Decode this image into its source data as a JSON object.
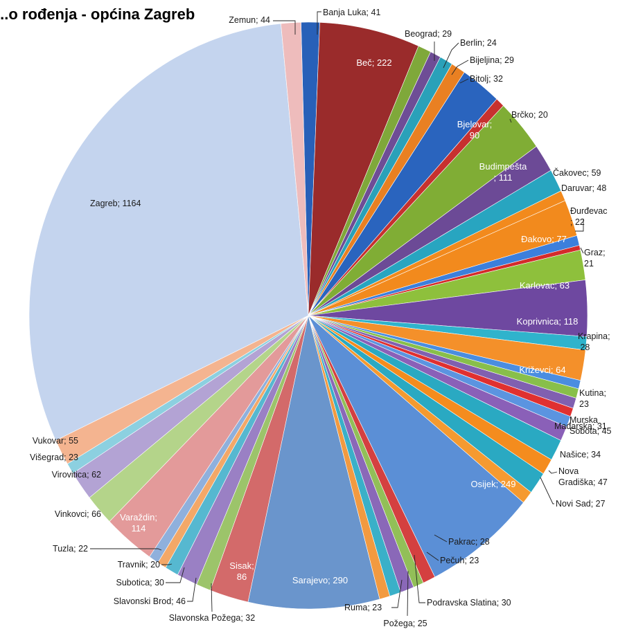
{
  "chart_data": {
    "type": "pie",
    "title": "...o rođenja - općina Zagreb",
    "legend": "none",
    "slices": [
      {
        "label": "Banja Luka; 41",
        "name": "Banja Luka",
        "value": 41,
        "color": "#2860b8"
      },
      {
        "label": "Beč; 222",
        "name": "Beč",
        "value": 222,
        "color": "#9a2b2b"
      },
      {
        "label": "Beograd; 29",
        "name": "Beograd",
        "value": 29,
        "color": "#7fa83a"
      },
      {
        "label": "Berlin; 24",
        "name": "Berlin",
        "value": 24,
        "color": "#6e4d96"
      },
      {
        "label": "Bijeljina; 29",
        "name": "Bijeljina",
        "value": 29,
        "color": "#2aa1b9"
      },
      {
        "label": "Bitolj; 32",
        "name": "Bitolj",
        "value": 32,
        "color": "#e98022"
      },
      {
        "label": "Bjelovar; 90",
        "name": "Bjelovar",
        "value": 90,
        "color": "#2a64be"
      },
      {
        "label": "Brčko; 20",
        "name": "Brčko",
        "value": 20,
        "color": "#c7312f"
      },
      {
        "label": "Budimpešta; 111",
        "name": "Budimpešta",
        "value": 111,
        "color": "#80ad35"
      },
      {
        "label": "Čakovec; 59",
        "name": "Čakovec",
        "value": 59,
        "color": "#6c4a96"
      },
      {
        "label": "Daruvar; 48",
        "name": "Daruvar",
        "value": 48,
        "color": "#28a5c0"
      },
      {
        "label": "Đurđevac; 22",
        "name": "Đurđevac",
        "value": 22,
        "color": "#f28a1d"
      },
      {
        "label": "Đakovo; 77",
        "name": "Đakovo",
        "value": 77,
        "color": "#f28a1d"
      },
      {
        "label": "Graz; 21",
        "name": "Graz",
        "value": 21,
        "color": "#3c7fdc"
      },
      {
        "label": "",
        "name": "",
        "value": 10,
        "color": "#d42b2b"
      },
      {
        "label": "Karlovac; 63",
        "name": "Karlovac",
        "value": 63,
        "color": "#8ec03c"
      },
      {
        "label": "Koprivnica; 118",
        "name": "Koprivnica",
        "value": 118,
        "color": "#6e48a0"
      },
      {
        "label": "Krapina; 28",
        "name": "Krapina",
        "value": 28,
        "color": "#2fb3cc"
      },
      {
        "label": "Križevci; 64",
        "name": "Križevci",
        "value": 64,
        "color": "#f4902a"
      },
      {
        "label": "",
        "name": "",
        "value": 18,
        "color": "#4a8de0"
      },
      {
        "label": "",
        "name": "",
        "value": 20,
        "color": "#88bf4a"
      },
      {
        "label": "",
        "name": "",
        "value": 22,
        "color": "#8060b0"
      },
      {
        "label": "",
        "name": "",
        "value": 18,
        "color": "#e03030"
      },
      {
        "label": "Kutina; 23",
        "name": "Kutina",
        "value": 23,
        "color": "#5b94e0"
      },
      {
        "label": "Mađarska; 31",
        "name": "Mađarska",
        "value": 31,
        "color": "#8a60b8"
      },
      {
        "label": "Murska Sobota; 45",
        "name": "Murska Sobota",
        "value": 45,
        "color": "#2aa9c2"
      },
      {
        "label": "Našice; 34",
        "name": "Našice",
        "value": 34,
        "color": "#f48c1e"
      },
      {
        "label": "Nova Gradiška; 47",
        "name": "Nova Gradiška",
        "value": 47,
        "color": "#2aa9c2"
      },
      {
        "label": "Novi Sad; 27",
        "name": "Novi Sad",
        "value": 27,
        "color": "#f59a30"
      },
      {
        "label": "Osijek; 249",
        "name": "Osijek",
        "value": 249,
        "color": "#5b8fd6"
      },
      {
        "label": "Pakrac; 28",
        "name": "Pakrac",
        "value": 28,
        "color": "#d44040"
      },
      {
        "label": "Pečuh; 23",
        "name": "Pečuh",
        "value": 23,
        "color": "#92bf58"
      },
      {
        "label": "Podravska Slatina; 30",
        "name": "Podravska Slatina",
        "value": 30,
        "color": "#8a68b8"
      },
      {
        "label": "Požega; 25",
        "name": "Požega",
        "value": 25,
        "color": "#3ab0c8"
      },
      {
        "label": "Ruma; 23",
        "name": "Ruma",
        "value": 23,
        "color": "#f29a40"
      },
      {
        "label": "Sarajevo; 290",
        "name": "Sarajevo",
        "value": 290,
        "color": "#6a95cc"
      },
      {
        "label": "Sisak; 86",
        "name": "Sisak",
        "value": 86,
        "color": "#d36a6a"
      },
      {
        "label": "Slavonska Požega; 32",
        "name": "Slavonska Požega",
        "value": 32,
        "color": "#9cc46a"
      },
      {
        "label": "Slavonski Brod; 46",
        "name": "Slavonski Brod",
        "value": 46,
        "color": "#9a80c4"
      },
      {
        "label": "Subotica; 30",
        "name": "Subotica",
        "value": 30,
        "color": "#56b8d0"
      },
      {
        "label": "Travnik; 20",
        "name": "Travnik",
        "value": 20,
        "color": "#f3a868"
      },
      {
        "label": "Tuzla; 22",
        "name": "Tuzla",
        "value": 22,
        "color": "#8fb0dc"
      },
      {
        "label": "Varaždin; 114",
        "name": "Varaždin",
        "value": 114,
        "color": "#e39a9a"
      },
      {
        "label": "Vinkovci; 66",
        "name": "Vinkovci",
        "value": 66,
        "color": "#b4d48a"
      },
      {
        "label": "Virovitica; 62",
        "name": "Virovitica",
        "value": 62,
        "color": "#b3a3d4"
      },
      {
        "label": "Višegrad; 23",
        "name": "Višegrad",
        "value": 23,
        "color": "#8cd0e0"
      },
      {
        "label": "Vukovar; 55",
        "name": "Vukovar",
        "value": 55,
        "color": "#f4b490"
      },
      {
        "label": "Zagreb; 1164",
        "name": "Zagreb",
        "value": 1164,
        "color": "#c4d4ee"
      },
      {
        "label": "Zemun; 44",
        "name": "Zemun",
        "value": 44,
        "color": "#eebcbc"
      }
    ]
  }
}
